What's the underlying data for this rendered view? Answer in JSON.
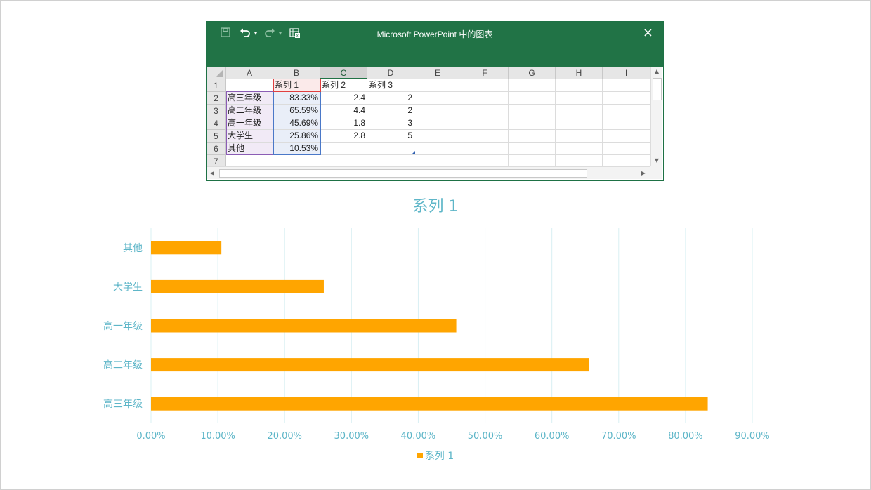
{
  "window": {
    "title": "Microsoft PowerPoint 中的图表",
    "close_icon": "×",
    "accent_color": "#217346"
  },
  "sheet": {
    "columns": [
      "A",
      "B",
      "C",
      "D",
      "E",
      "F",
      "G",
      "H",
      "I"
    ],
    "rows": [
      "1",
      "2",
      "3",
      "4",
      "5",
      "6",
      "7"
    ],
    "header_row": [
      "",
      "系列 1",
      "系列 2",
      "系列 3"
    ],
    "data": [
      [
        "高三年级",
        "83.33%",
        "2.4",
        "2"
      ],
      [
        "高二年级",
        "65.59%",
        "4.4",
        "2"
      ],
      [
        "高一年级",
        "45.69%",
        "1.8",
        "3"
      ],
      [
        "大学生",
        "25.86%",
        "2.8",
        "5"
      ],
      [
        "其他",
        "10.53%",
        "",
        ""
      ]
    ]
  },
  "chart_data": {
    "type": "bar",
    "orientation": "horizontal",
    "title": "系列 1",
    "categories": [
      "高三年级",
      "高二年级",
      "高一年级",
      "大学生",
      "其他"
    ],
    "series": [
      {
        "name": "系列 1",
        "values": [
          83.33,
          65.59,
          45.69,
          25.86,
          10.53
        ],
        "color": "#ffa500"
      }
    ],
    "xlim": [
      0,
      90
    ],
    "xticks": [
      "0.00%",
      "10.00%",
      "20.00%",
      "30.00%",
      "40.00%",
      "50.00%",
      "60.00%",
      "70.00%",
      "80.00%",
      "90.00%"
    ],
    "grid": true,
    "legend": "bottom",
    "text_color": "#5eb6c8",
    "grid_color": "#d9f0f3"
  }
}
